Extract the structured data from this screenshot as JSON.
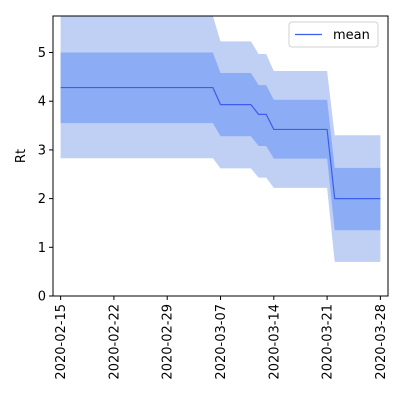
{
  "chart_data": {
    "type": "area",
    "title": "",
    "xlabel": "",
    "ylabel": "Rt",
    "xlim": [
      "2020-02-14",
      "2020-03-29"
    ],
    "ylim": [
      0,
      5.75
    ],
    "x_ticks": [
      "2020-02-15",
      "2020-02-22",
      "2020-02-29",
      "2020-03-07",
      "2020-03-14",
      "2020-03-21",
      "2020-03-28"
    ],
    "y_ticks": [
      0,
      1,
      2,
      3,
      4,
      5
    ],
    "grid": false,
    "legend": {
      "placement": "top-right",
      "entries": [
        "mean"
      ]
    },
    "x": [
      "2020-02-15",
      "2020-03-06",
      "2020-03-07",
      "2020-03-11",
      "2020-03-12",
      "2020-03-13",
      "2020-03-14",
      "2020-03-21",
      "2020-03-22",
      "2020-03-28"
    ],
    "series": [
      {
        "name": "mean",
        "values": [
          4.28,
          4.28,
          3.93,
          3.93,
          3.73,
          3.73,
          3.42,
          3.42,
          2.0,
          2.0
        ]
      }
    ],
    "band_inner": {
      "upper": [
        5.0,
        5.0,
        4.58,
        4.58,
        4.33,
        4.33,
        4.03,
        4.03,
        2.63,
        2.63
      ],
      "lower": [
        3.55,
        3.55,
        3.28,
        3.28,
        3.08,
        3.08,
        2.82,
        2.82,
        1.35,
        1.35
      ]
    },
    "band_outer": {
      "upper": [
        5.75,
        5.75,
        5.23,
        5.23,
        4.97,
        4.97,
        4.62,
        4.62,
        3.3,
        3.3
      ],
      "lower": [
        2.83,
        2.83,
        2.62,
        2.62,
        2.43,
        2.43,
        2.22,
        2.22,
        0.7,
        0.7
      ]
    },
    "colors": {
      "outer_band": "#c0d0f5",
      "inner_band": "#8cadf5",
      "mean_line": "#3d5cf0",
      "axes": "#000000"
    }
  }
}
